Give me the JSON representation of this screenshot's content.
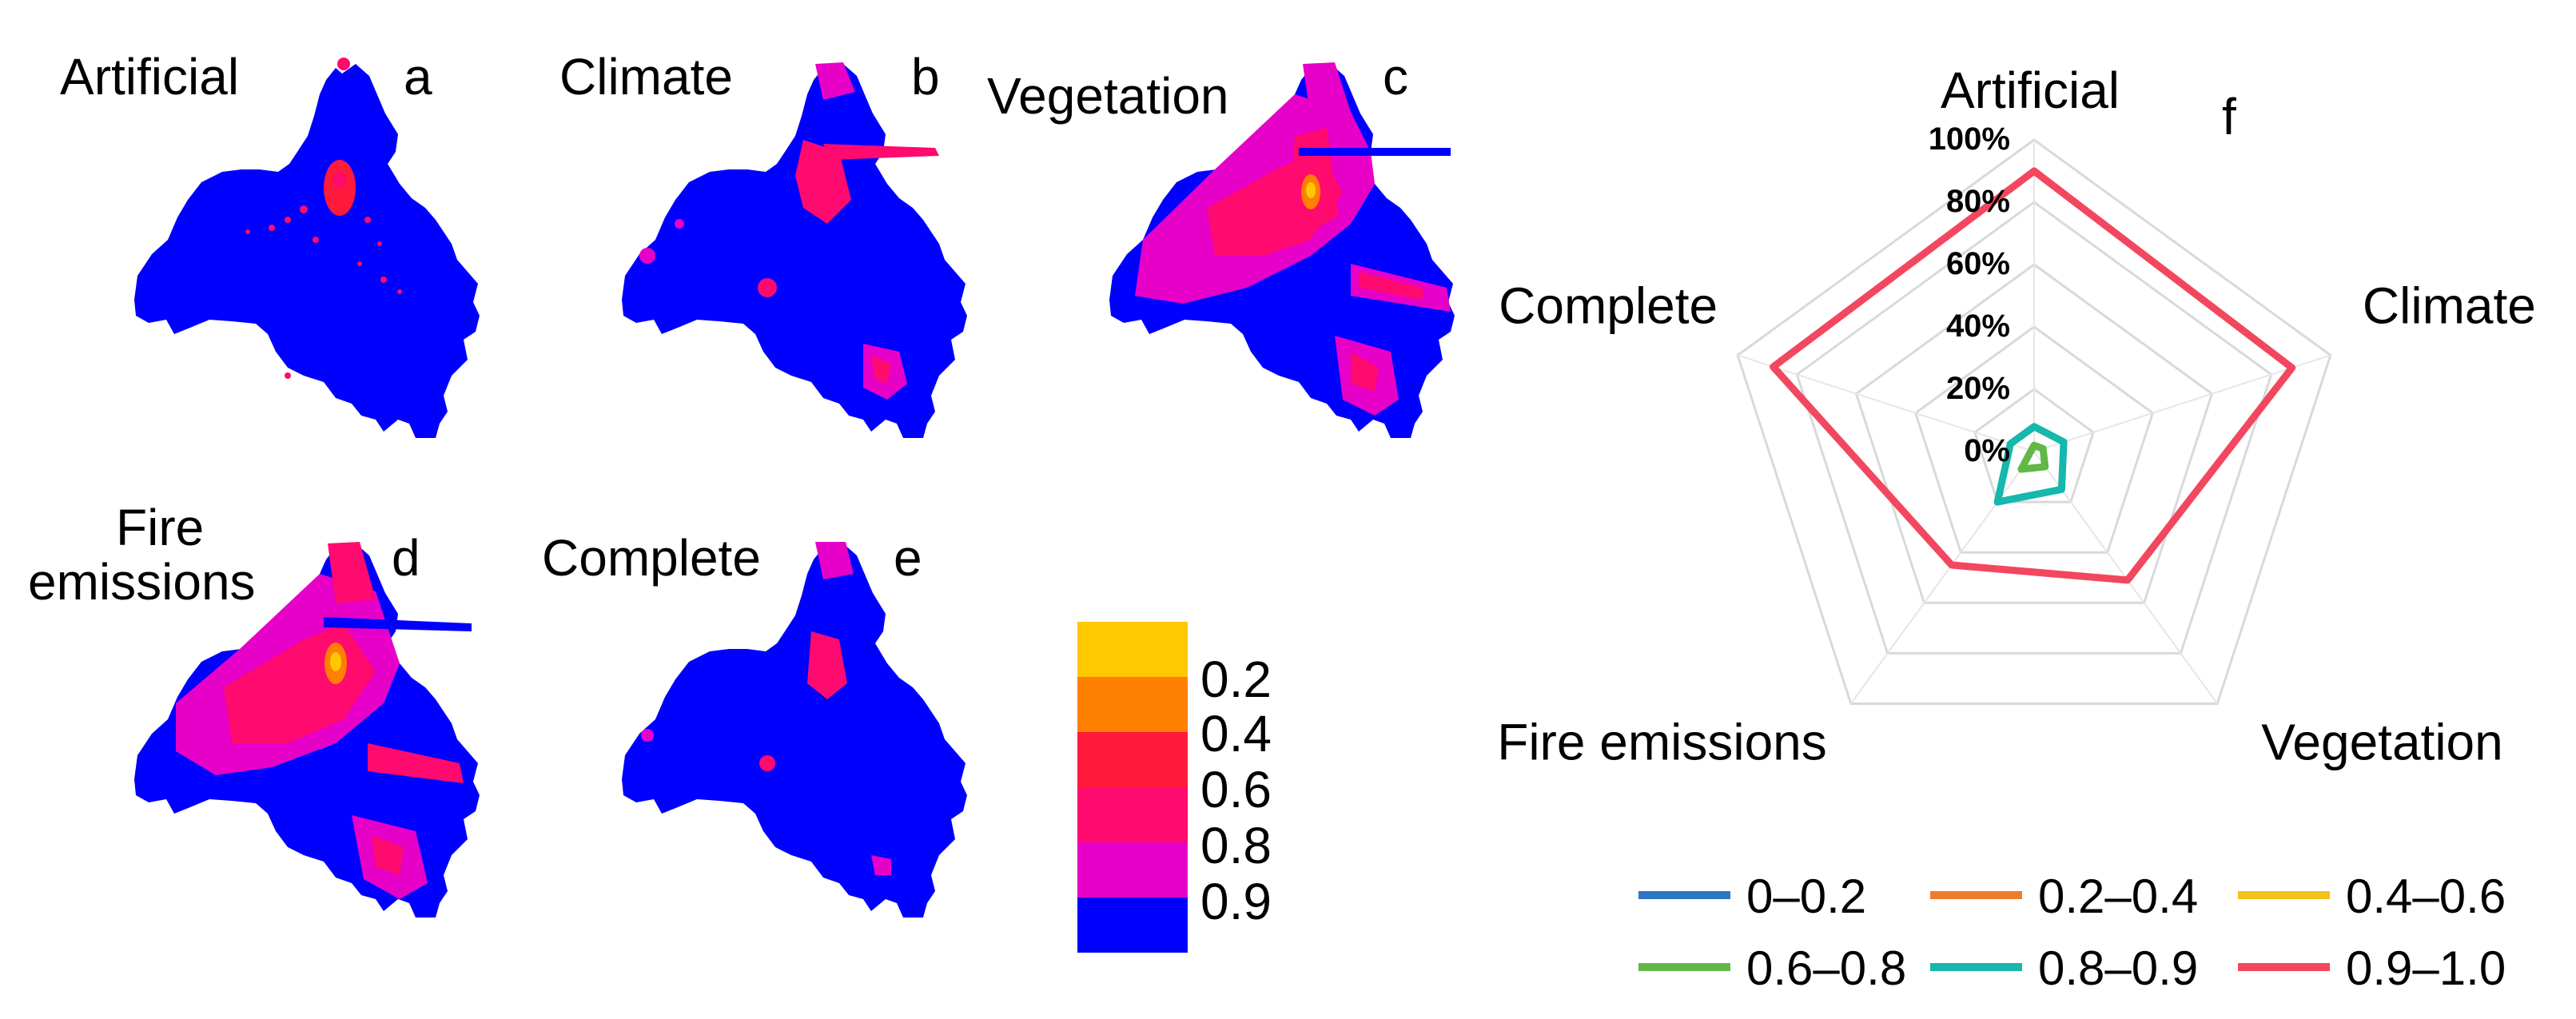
{
  "maps": [
    {
      "title": "Artificial",
      "letter": "a"
    },
    {
      "title": "Climate",
      "letter": "b"
    },
    {
      "title": "Vegetation",
      "letter": "c"
    },
    {
      "title_line1": "Fire",
      "title_line2": "emissions",
      "letter": "d"
    },
    {
      "title": "Complete",
      "letter": "e"
    }
  ],
  "colorbar": {
    "colors": [
      "#ffc800",
      "#ff7f00",
      "#ff1a3c",
      "#ff0a6e",
      "#e600c8",
      "#0000ff"
    ],
    "labels": [
      "0.2",
      "0.4",
      "0.6",
      "0.8",
      "0.9"
    ]
  },
  "colors": {
    "blue": "#0000ff",
    "magenta": "#e600c8",
    "pink": "#ff0a6e",
    "orange": "#ff7f00",
    "yellow": "#ffc800"
  },
  "chart_data": {
    "type": "radar",
    "panel_letter": "f",
    "axes": [
      "Artificial",
      "Climate",
      "Vegetation",
      "Fire emissions",
      "Complete"
    ],
    "radial_ticks": [
      "0%",
      "20%",
      "40%",
      "60%",
      "80%",
      "100%"
    ],
    "range": [
      0,
      100
    ],
    "grid": true,
    "legend_position": "bottom",
    "series": [
      {
        "name": "0–0.2",
        "color": "#2e75c4",
        "values": [
          0,
          0,
          0,
          0,
          0
        ]
      },
      {
        "name": "0.2–0.4",
        "color": "#f07c2a",
        "values": [
          0,
          0,
          0,
          0,
          0
        ]
      },
      {
        "name": "0.4–0.6",
        "color": "#f2c21b",
        "values": [
          0,
          0,
          0,
          0,
          0
        ]
      },
      {
        "name": "0.6–0.8",
        "color": "#62b846",
        "values": [
          2,
          3,
          6,
          7,
          1
        ]
      },
      {
        "name": "0.8–0.9",
        "color": "#16b7ad",
        "values": [
          8,
          10,
          15,
          20,
          8
        ]
      },
      {
        "name": "0.9–1.0",
        "color": "#f2475e",
        "values": [
          90,
          87,
          51,
          45,
          88
        ]
      }
    ]
  }
}
